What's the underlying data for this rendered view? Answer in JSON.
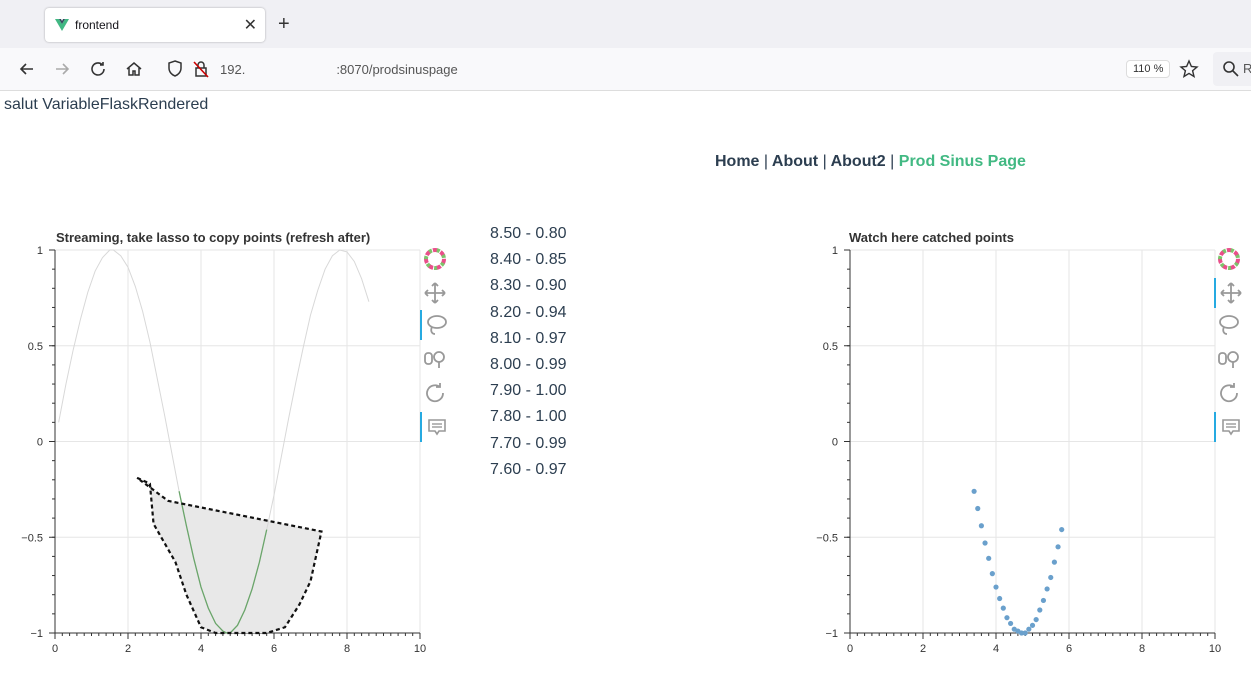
{
  "browser": {
    "tab_title": "frontend",
    "tab_close": "✕",
    "new_tab": "+",
    "url_prefix": "192.",
    "url_suffix": ":8070/prodsinuspage",
    "zoom": "110 %",
    "search_partial": "R"
  },
  "page": {
    "greeting": "salut VariableFlaskRendered",
    "menu": [
      {
        "label": "Home",
        "active": false
      },
      {
        "label": "About",
        "active": false
      },
      {
        "label": "About2",
        "active": false
      },
      {
        "label": "Prod Sinus Page",
        "active": true
      }
    ],
    "menu_separator": "|"
  },
  "points_list": [
    "8.50 - 0.80",
    "8.40 - 0.85",
    "8.30 - 0.90",
    "8.20 - 0.94",
    "8.10 - 0.97",
    "8.00 - 0.99",
    "7.90 - 1.00",
    "7.80 - 1.00",
    "7.70 - 0.99",
    "7.60 - 0.97"
  ],
  "colors": {
    "accent": "#42b983",
    "text": "#2c3e50",
    "points": "#6aa0cc",
    "lasso_fill": "#e8e8e8",
    "tool_active": "#26aae1"
  },
  "chart_data": [
    {
      "type": "line",
      "title": "Streaming, take lasso to copy points (refresh after)",
      "xlim": [
        0,
        10
      ],
      "ylim": [
        -1,
        1
      ],
      "x_ticks": [
        0,
        2,
        4,
        6,
        8,
        10
      ],
      "y_ticks": [
        -1,
        -0.5,
        0,
        0.5,
        1
      ],
      "grid": true,
      "series": [
        {
          "x": [
            0.1,
            0.3,
            0.5,
            0.7,
            0.9,
            1.1,
            1.3,
            1.5,
            1.6,
            1.8,
            2.0,
            2.2,
            2.4,
            2.6,
            2.8,
            3.0,
            3.2,
            3.3,
            3.4,
            3.6,
            3.8,
            4.0,
            4.2,
            4.4,
            4.6,
            4.7,
            4.8,
            5.0,
            5.2,
            5.4,
            5.6,
            5.8,
            6.0,
            6.2,
            6.4,
            6.6,
            6.8,
            7.0,
            7.2,
            7.4,
            7.6,
            7.8,
            8.0,
            8.2,
            8.4,
            8.6
          ],
          "y": [
            0.1,
            0.3,
            0.48,
            0.64,
            0.78,
            0.89,
            0.96,
            1.0,
            1.0,
            0.97,
            0.91,
            0.81,
            0.68,
            0.52,
            0.33,
            0.14,
            -0.06,
            -0.16,
            -0.26,
            -0.44,
            -0.61,
            -0.76,
            -0.87,
            -0.95,
            -0.99,
            -1.0,
            -1.0,
            -0.96,
            -0.88,
            -0.77,
            -0.63,
            -0.46,
            -0.28,
            -0.08,
            0.12,
            0.31,
            0.49,
            0.66,
            0.79,
            0.9,
            0.97,
            1.0,
            0.99,
            0.94,
            0.85,
            0.73
          ]
        }
      ],
      "lasso": {
        "x": [
          2.25,
          2.6,
          2.7,
          3.3,
          3.6,
          4.0,
          4.4,
          5.8,
          6.3,
          6.7,
          7.0,
          7.3,
          3.1
        ],
        "y": [
          -0.19,
          -0.22,
          -0.43,
          -0.63,
          -0.8,
          -0.97,
          -1.0,
          -1.0,
          -0.97,
          -0.85,
          -0.73,
          -0.47,
          -0.31
        ]
      },
      "selected_x": [
        3.4,
        3.6,
        3.8,
        4.0,
        4.2,
        4.4,
        4.6,
        4.7,
        4.8,
        5.0,
        5.2,
        5.4,
        5.6,
        5.8
      ],
      "selected_y": [
        -0.26,
        -0.44,
        -0.61,
        -0.76,
        -0.87,
        -0.95,
        -0.99,
        -1.0,
        -1.0,
        -0.96,
        -0.88,
        -0.77,
        -0.63,
        -0.46
      ]
    },
    {
      "type": "scatter",
      "title": "Watch here catched points",
      "xlim": [
        0,
        10
      ],
      "ylim": [
        -1,
        1
      ],
      "x_ticks": [
        0,
        2,
        4,
        6,
        8,
        10
      ],
      "y_ticks": [
        -1,
        -0.5,
        0,
        0.5,
        1
      ],
      "grid": true,
      "x": [
        3.4,
        3.5,
        3.6,
        3.7,
        3.8,
        3.9,
        4.0,
        4.1,
        4.2,
        4.3,
        4.4,
        4.5,
        4.6,
        4.7,
        4.8,
        4.9,
        5.0,
        5.1,
        5.2,
        5.3,
        5.4,
        5.5,
        5.6,
        5.7,
        5.8
      ],
      "y": [
        -0.26,
        -0.35,
        -0.44,
        -0.53,
        -0.61,
        -0.69,
        -0.76,
        -0.82,
        -0.87,
        -0.92,
        -0.95,
        -0.98,
        -0.99,
        -1.0,
        -1.0,
        -0.98,
        -0.96,
        -0.93,
        -0.88,
        -0.83,
        -0.77,
        -0.71,
        -0.63,
        -0.55,
        -0.46
      ]
    }
  ],
  "toolbar_tools": [
    "bokeh-logo-icon",
    "pan-icon",
    "lasso-select-icon",
    "wheel-zoom-icon",
    "reset-icon",
    "hover-icon"
  ]
}
